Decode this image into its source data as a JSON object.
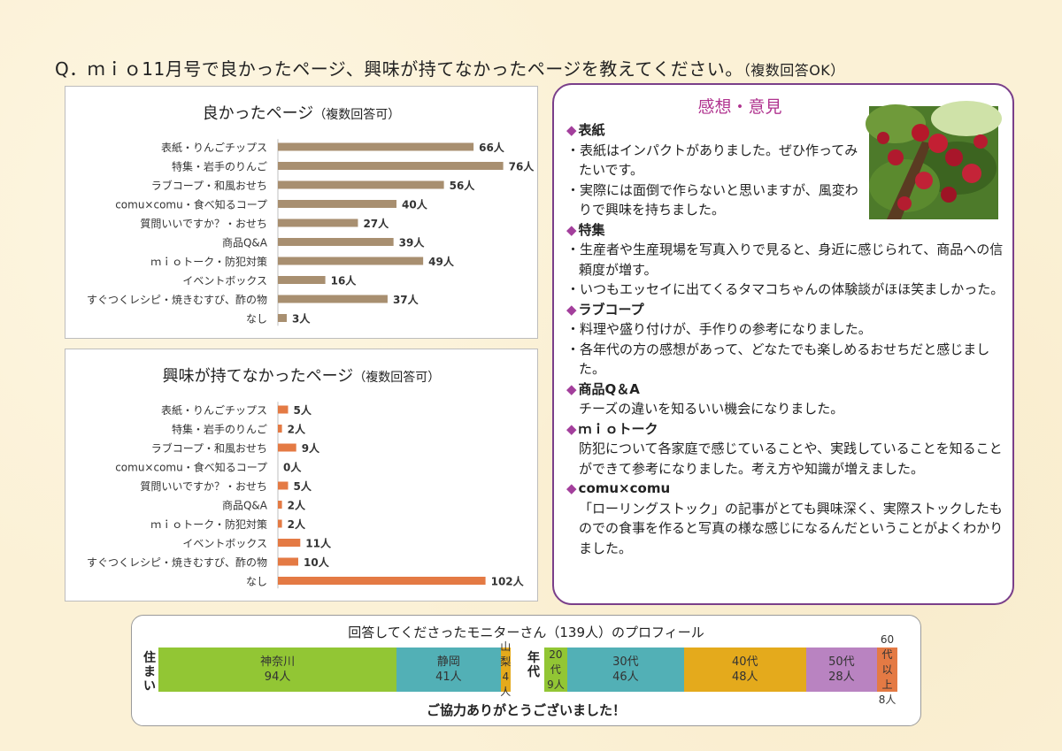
{
  "question": {
    "text": "Q．ｍｉｏ11月号で良かったページ、興味が持てなかったページを教えてください。",
    "note": "（複数回答OK）"
  },
  "chart_data": [
    {
      "type": "bar",
      "orientation": "horizontal",
      "title": "良かったページ",
      "subtitle": "（複数回答可）",
      "categories": [
        "表紙・りんごチップス",
        "特集・岩手のりんご",
        "ラブコープ・和風おせち",
        "comu×comu・食べ知るコープ",
        "質問いいですか？・おせち",
        "商品Q&A",
        "ｍｉｏトーク・防犯対策",
        "イベントボックス",
        "すぐつくレシピ・焼きむすび、酢の物",
        "なし"
      ],
      "values": [
        66,
        76,
        56,
        40,
        27,
        39,
        49,
        16,
        37,
        3
      ],
      "value_labels": [
        "66人",
        "76人",
        "56人",
        "40人",
        "27人",
        "39人",
        "49人",
        "16人",
        "37人",
        "3人"
      ],
      "color": "#a88f70",
      "xlim": [
        0,
        76
      ]
    },
    {
      "type": "bar",
      "orientation": "horizontal",
      "title": "興味が持てなかったページ",
      "subtitle": "（複数回答可）",
      "categories": [
        "表紙・りんごチップス",
        "特集・岩手のりんご",
        "ラブコープ・和風おせち",
        "comu×comu・食べ知るコープ",
        "質問いいですか？・おせち",
        "商品Q&A",
        "ｍｉｏトーク・防犯対策",
        "イベントボックス",
        "すぐつくレシピ・焼きむすび、酢の物",
        "なし"
      ],
      "values": [
        5,
        2,
        9,
        0,
        5,
        2,
        2,
        11,
        10,
        102
      ],
      "value_labels": [
        "5人",
        "2人",
        "9人",
        "0人",
        "5人",
        "2人",
        "2人",
        "11人",
        "10人",
        "102人"
      ],
      "color": "#e47a44",
      "xlim": [
        0,
        102
      ]
    }
  ],
  "comments": {
    "title": "感想・意見",
    "photo": "apple-tree-photo",
    "sections": [
      {
        "heading": "表紙",
        "items": [
          {
            "bullet": "・",
            "text": "表紙はインパクトがありました。ぜひ作ってみたいです。"
          },
          {
            "bullet": "・",
            "text": "実際には面倒で作らないと思いますが、風変わりで興味を持ちました。"
          }
        ]
      },
      {
        "heading": "特集",
        "items": [
          {
            "bullet": "・",
            "text": "生産者や生産現場を写真入りで見ると、身近に感じられて、商品への信頼度が増す。"
          },
          {
            "bullet": "・",
            "text": "いつもエッセイに出てくるタマコちゃんの体験談がほほ笑ましかった。"
          }
        ]
      },
      {
        "heading": "ラブコープ",
        "items": [
          {
            "bullet": "・",
            "text": "料理や盛り付けが、手作りの参考になりました。"
          },
          {
            "bullet": "・",
            "text": "各年代の方の感想があって、どなたでも楽しめるおせちだと感じました。"
          }
        ]
      },
      {
        "heading": "商品Q＆A",
        "items": [
          {
            "bullet": "",
            "text": "チーズの違いを知るいい機会になりました。"
          }
        ]
      },
      {
        "heading": "ｍｉｏトーク",
        "items": [
          {
            "bullet": "",
            "text": "防犯について各家庭で感じていることや、実践していることを知ることができて参考になりました。考え方や知識が増えました。"
          }
        ]
      },
      {
        "heading": "comu×comu",
        "items": [
          {
            "bullet": "",
            "text": "「ローリングストック」の記事がとても興味深く、実際ストックしたものでの食事を作ると写真の様な感じになるんだということがよくわかりました。"
          }
        ]
      }
    ]
  },
  "profile": {
    "title": "回答してくださったモニターさん（139人）のプロフィール",
    "thanks": "ご協力ありがとうございました！",
    "residence_label": "住まい",
    "age_label": "年代",
    "residence": [
      {
        "name": "神奈川",
        "count": "94人",
        "value": 94,
        "color": "#92c634"
      },
      {
        "name": "静岡",
        "count": "41人",
        "value": 41,
        "color": "#52b0b6"
      },
      {
        "name": "山梨",
        "count": "4人",
        "value": 4,
        "color": "#e4aa1c"
      }
    ],
    "age": [
      {
        "name": "20代",
        "count": "9人",
        "value": 9,
        "color": "#92c634"
      },
      {
        "name": "30代",
        "count": "46人",
        "value": 46,
        "color": "#52b0b6"
      },
      {
        "name": "40代",
        "count": "48人",
        "value": 48,
        "color": "#e4aa1c"
      },
      {
        "name": "50代",
        "count": "28人",
        "value": 28,
        "color": "#b983c1"
      },
      {
        "name": "60代以上",
        "count": "8人",
        "value": 8,
        "color": "#e47a44"
      }
    ]
  }
}
